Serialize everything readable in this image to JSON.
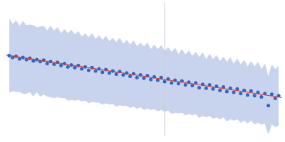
{
  "chart_data": {
    "type": "scatter",
    "x": [
      5,
      10,
      15,
      20,
      25,
      30,
      35,
      40,
      45,
      50,
      55,
      60,
      65,
      70,
      75,
      80,
      85,
      90,
      95,
      100,
      105,
      110,
      115,
      120,
      125,
      130,
      135,
      140,
      145,
      150,
      155,
      160,
      165,
      170,
      175,
      180,
      185,
      190,
      195,
      200,
      205,
      210,
      215,
      220,
      225,
      230,
      235,
      240,
      245,
      250,
      255,
      260,
      265,
      270,
      275,
      280,
      285,
      290,
      295,
      300,
      305,
      310,
      315,
      320,
      325,
      330,
      335,
      340,
      345,
      350,
      355,
      360,
      365,
      370,
      375,
      380,
      385,
      390,
      395
    ],
    "series": [
      {
        "color": "#3366bb",
        "marker": "circle",
        "values": [
          121,
          118,
          120,
          116,
          118,
          115,
          117,
          113,
          115,
          112,
          114,
          109,
          112,
          108,
          111,
          106,
          109,
          104,
          107,
          103,
          106,
          101,
          104,
          99,
          103,
          98,
          101,
          96,
          100,
          95,
          98,
          93,
          97,
          92,
          95,
          90,
          94,
          88,
          92,
          87,
          91,
          85,
          89,
          84,
          88,
          82,
          86,
          80,
          84,
          79,
          83,
          77,
          81,
          76,
          80,
          73,
          78,
          72,
          77,
          71,
          75,
          69,
          74,
          67,
          72,
          66,
          71,
          64,
          69,
          62,
          68,
          61,
          66,
          59,
          64,
          46,
          63,
          57,
          61
        ],
        "errors": [
          55,
          50,
          53,
          49,
          54,
          51,
          50,
          53,
          48,
          52,
          51,
          49,
          53,
          50,
          52,
          48,
          51,
          50,
          52,
          49,
          51,
          48,
          50,
          49,
          51,
          47,
          50,
          48,
          50,
          47,
          49,
          48,
          50,
          46,
          49,
          47,
          49,
          46,
          48,
          47,
          49,
          45,
          48,
          46,
          48,
          45,
          47,
          46,
          48,
          44,
          47,
          45,
          47,
          44,
          46,
          45,
          47,
          43,
          46,
          44,
          46,
          43,
          45,
          44,
          46,
          42,
          45,
          43,
          45,
          42,
          44,
          43,
          45,
          41,
          44,
          42,
          44,
          43,
          44
        ],
        "error_color": "#c8d4ee"
      }
    ],
    "fit": {
      "x": [
        0,
        400
      ],
      "values": [
        122,
        58
      ],
      "color": "#dd3333",
      "line_style": "solid"
    },
    "reference_x": 230,
    "reference_color": "#c8ccd8",
    "xlim": [
      0,
      400
    ],
    "ylim": [
      0,
      200
    ],
    "tick_labels": false,
    "grid": false
  }
}
